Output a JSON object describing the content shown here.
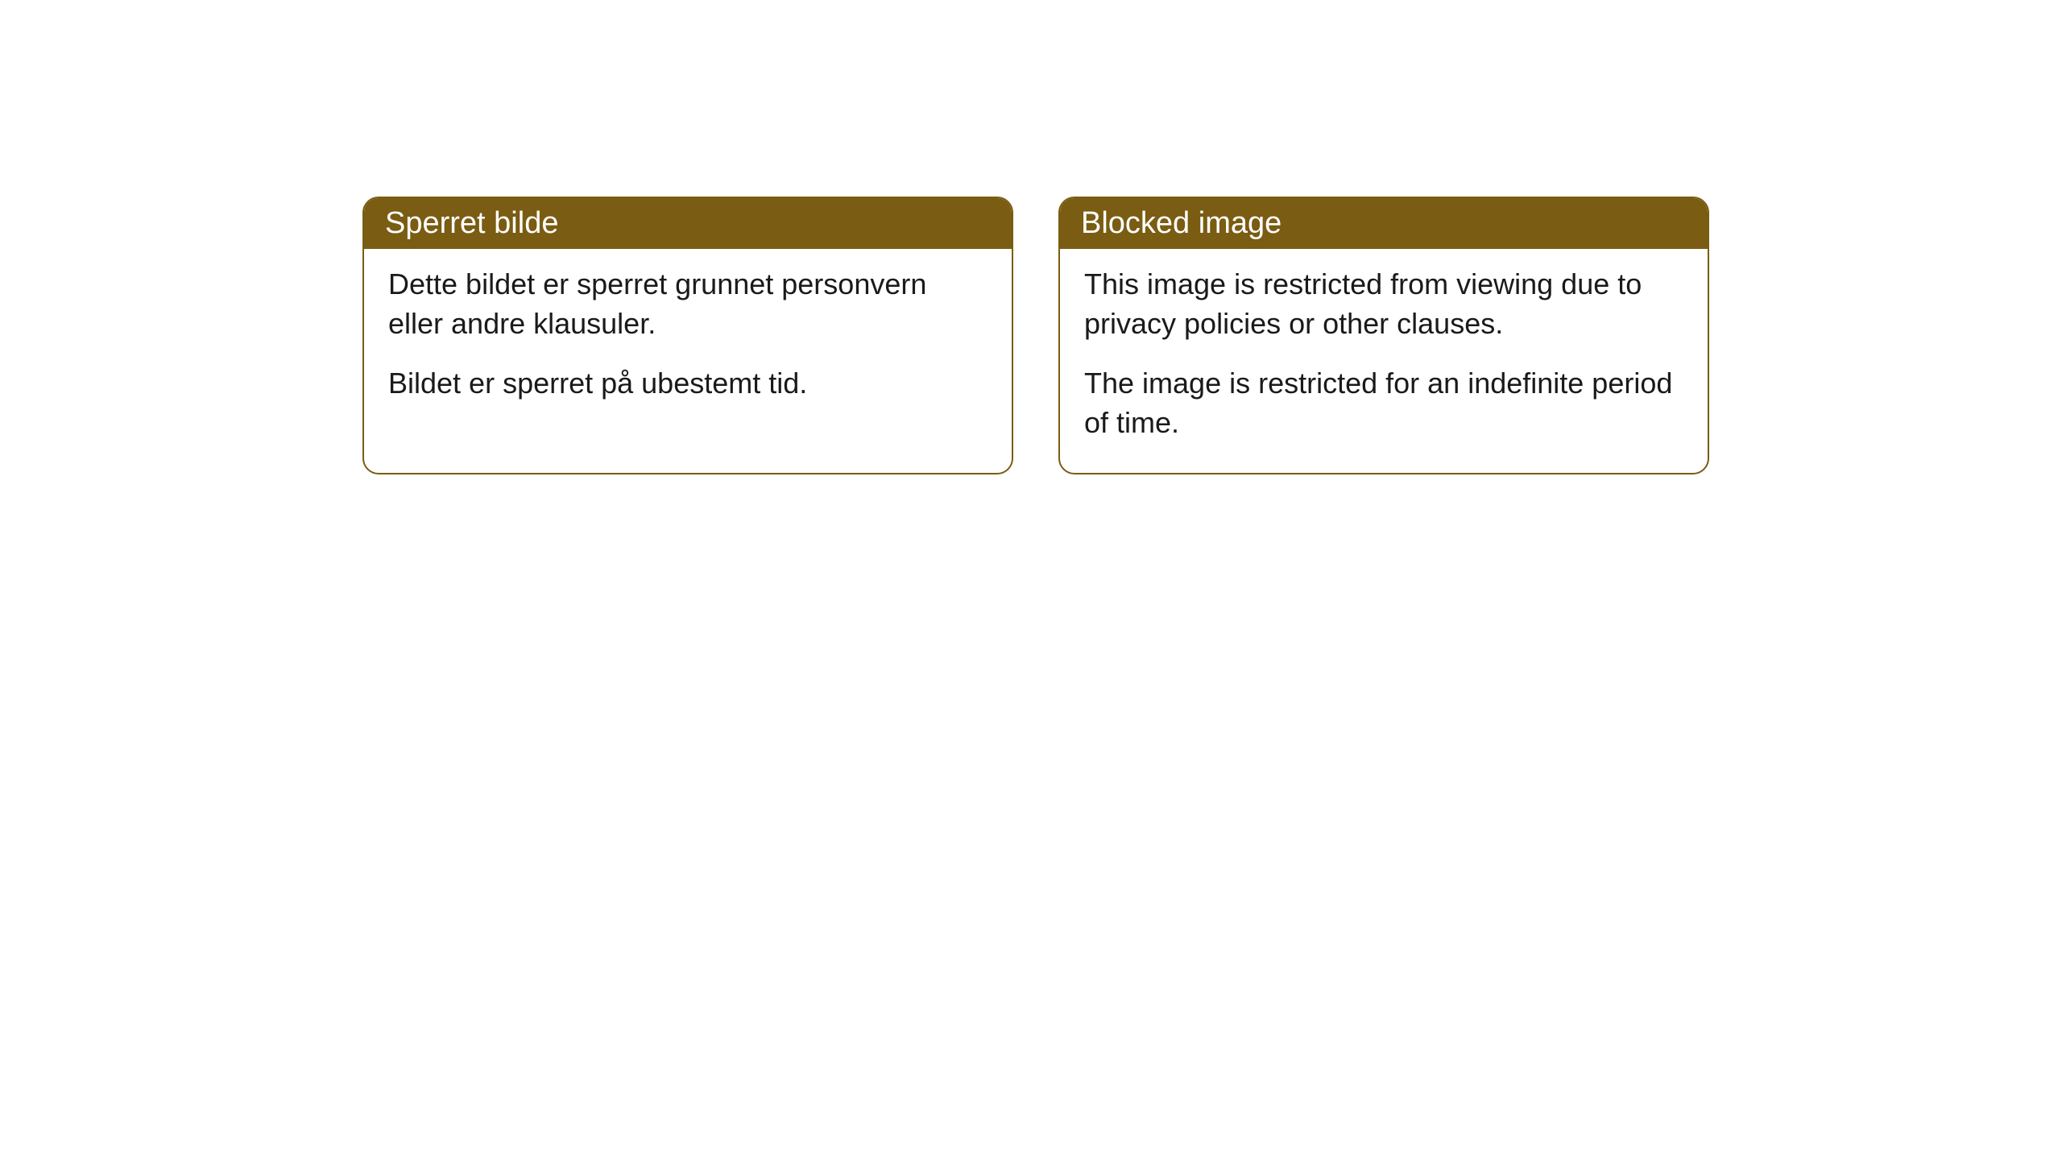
{
  "cards": [
    {
      "title": "Sperret bilde",
      "paragraph1": "Dette bildet er sperret grunnet personvern eller andre klausuler.",
      "paragraph2": "Bildet er sperret på ubestemt tid."
    },
    {
      "title": "Blocked image",
      "paragraph1": "This image is restricted from viewing due to privacy policies or other clauses.",
      "paragraph2": "The image is restricted for an indefinite period of time."
    }
  ],
  "style": {
    "header_background": "#7a5c12",
    "header_text_color": "#ffffff",
    "body_text_color": "#1a1a1a",
    "border_color": "#7a5c12",
    "card_background": "#ffffff",
    "page_background": "#ffffff",
    "border_radius": 20,
    "title_fontsize": 38,
    "body_fontsize": 36
  }
}
